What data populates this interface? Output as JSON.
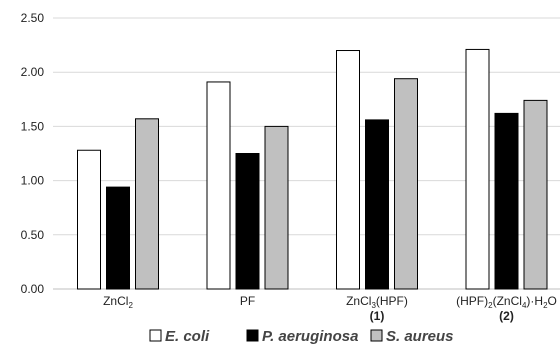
{
  "chart_data": {
    "type": "bar",
    "categories": [
      {
        "id": "zncl2",
        "parts": [
          {
            "t": "ZnCl"
          },
          {
            "t": "2",
            "sub": true
          }
        ],
        "number": ""
      },
      {
        "id": "pf",
        "parts": [
          {
            "t": "PF"
          }
        ],
        "number": ""
      },
      {
        "id": "zncl3hpf",
        "parts": [
          {
            "t": "ZnCl"
          },
          {
            "t": "3",
            "sub": true
          },
          {
            "t": "(HPF)"
          }
        ],
        "number": "(1)"
      },
      {
        "id": "hpf2zncl4",
        "parts": [
          {
            "t": "(HPF)"
          },
          {
            "t": "2",
            "sub": true
          },
          {
            "t": "(ZnCl"
          },
          {
            "t": "4",
            "sub": true
          },
          {
            "t": ")·H"
          },
          {
            "t": "2",
            "sub": true
          },
          {
            "t": "O"
          }
        ],
        "number": "(2)"
      }
    ],
    "series": [
      {
        "name": "E. coli",
        "color": "#ffffff",
        "values": [
          1.28,
          1.91,
          2.2,
          2.21
        ]
      },
      {
        "name": "P. aeruginosa",
        "color": "#000000",
        "values": [
          0.94,
          1.25,
          1.56,
          1.62
        ]
      },
      {
        "name": "S. aureus",
        "color": "#c0c0c0",
        "values": [
          1.57,
          1.5,
          1.94,
          1.74
        ]
      }
    ],
    "y_ticks": [
      "0.00",
      "0.50",
      "1.00",
      "1.50",
      "2.00",
      "2.50"
    ],
    "ylim": [
      0,
      2.5
    ],
    "grid": true,
    "legend_position": "bottom",
    "title": "",
    "xlabel": "",
    "ylabel": ""
  }
}
